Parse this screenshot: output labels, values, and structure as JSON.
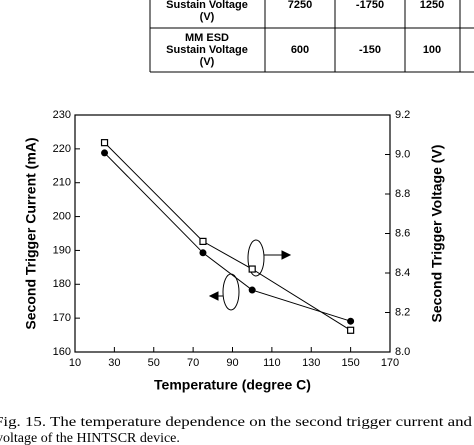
{
  "table": {
    "rows": [
      {
        "label": [
          "Sustain Voltage",
          "(V)"
        ],
        "cells": [
          "7250",
          "-1750",
          "1250"
        ]
      },
      {
        "label": [
          "MM ESD",
          "Sustain Voltage",
          "(V)"
        ],
        "cells": [
          "600",
          "-150",
          "100"
        ]
      }
    ]
  },
  "chart_data": {
    "type": "line",
    "xlabel": "Temperature  (degree C)",
    "ylabel": "Second Trigger Current (mA)",
    "y2label": "Second Trigger Voltage (V)",
    "x": [
      25,
      75,
      100,
      150
    ],
    "series": [
      {
        "name": "Second Trigger Current",
        "color": "#000000",
        "marker": "circle",
        "values": [
          218.8,
          189.3,
          178.3,
          169.1
        ]
      },
      {
        "name": "Second Trigger Voltage",
        "color": "#000000",
        "marker": "square",
        "axis": "y2",
        "values": [
          9.06,
          8.56,
          8.42,
          8.11
        ]
      }
    ],
    "xlim": [
      10,
      170
    ],
    "xticks": [
      10,
      30,
      50,
      70,
      90,
      110,
      130,
      150,
      170
    ],
    "ylim": [
      160,
      230
    ],
    "yticks": [
      160,
      170,
      180,
      190,
      200,
      210,
      220,
      230
    ],
    "y2lim": [
      8,
      9.2
    ],
    "y2ticks": [
      {
        "value": 8,
        "label": "8.0"
      },
      8.2,
      8.4,
      8.6,
      8.8,
      {
        "value": 9,
        "label": "9.0"
      },
      9.2
    ]
  },
  "caption": {
    "lines": [
      "Fig. 15.   The temperature dependence on the second trigger current and",
      "voltage of the HINTSCR device."
    ]
  }
}
